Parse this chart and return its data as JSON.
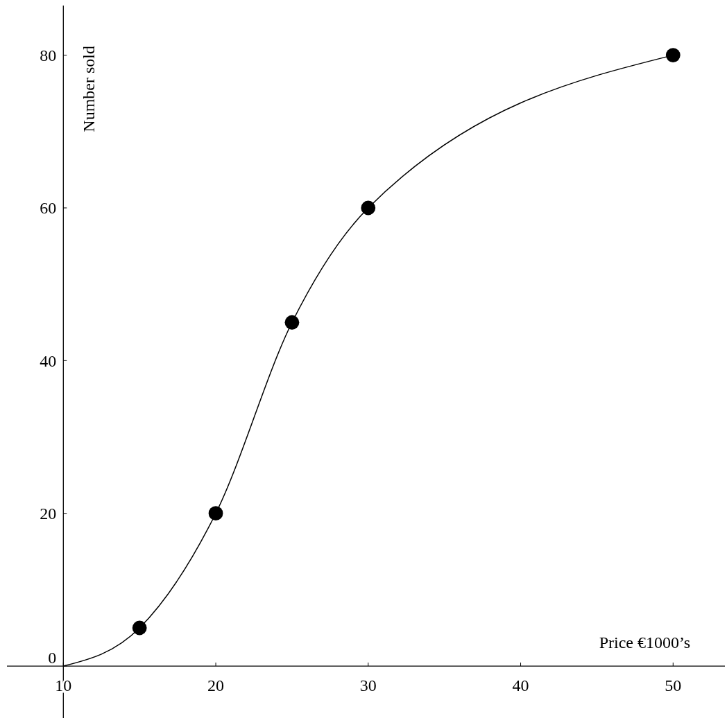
{
  "chart_data": {
    "type": "line",
    "xlabel": "Price €1000’s",
    "ylabel": "Number sold",
    "xlim": [
      6.3,
      53.4
    ],
    "ylim": [
      -6.8,
      86.5
    ],
    "xticks": [
      10,
      20,
      30,
      40,
      50
    ],
    "yticks": [
      0,
      20,
      40,
      60,
      80
    ],
    "series": [
      {
        "color": "#000000",
        "x": [
          10,
          15,
          20,
          25,
          30,
          50
        ],
        "values": [
          0,
          5,
          20,
          45,
          60,
          80
        ]
      },
      {
        "type": "scatter",
        "color": "#000000",
        "marker": "circle",
        "x": [
          15,
          20,
          25,
          30,
          50
        ],
        "values": [
          5,
          20,
          45,
          60,
          80
        ]
      }
    ]
  }
}
